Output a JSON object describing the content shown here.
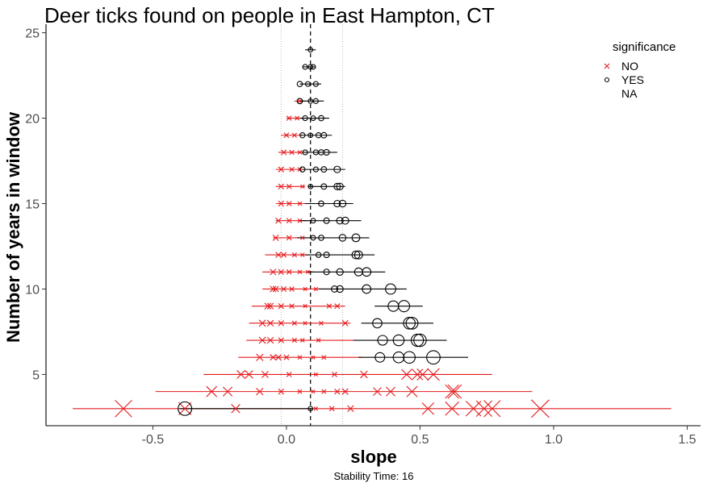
{
  "chart_data": {
    "type": "scatter",
    "title": "Deer ticks found on people in East Hampton, CT",
    "xlabel": "slope",
    "ylabel": "Number of years in window",
    "caption": "Stability Time: 16",
    "xlim": [
      -0.9,
      1.55
    ],
    "ylim": [
      2,
      25.5
    ],
    "x_ticks": [
      -0.5,
      0.0,
      0.5,
      1.0,
      1.5
    ],
    "x_tick_labels": [
      "-0.5",
      "0.0",
      "0.5",
      "1.0",
      "1.5"
    ],
    "y_ticks": [
      5,
      10,
      15,
      20,
      25
    ],
    "y_tick_labels": [
      "5",
      "10",
      "15",
      "20",
      "25"
    ],
    "grid": false,
    "reference_lines": {
      "dashed": 0.09,
      "dotted": [
        -0.02,
        0.21
      ]
    },
    "colors": {
      "NO": "#e41a1c",
      "YES": "#000000"
    },
    "legend": {
      "title": "significance",
      "position": "top-right",
      "entries": [
        {
          "label": "NO",
          "shape": "x",
          "color": "#e41a1c"
        },
        {
          "label": "YES",
          "shape": "circle",
          "color": "#000000"
        },
        {
          "label": "NA",
          "shape": "none",
          "color": "#000000"
        }
      ]
    },
    "rows": [
      {
        "y": 3,
        "no": {
          "range": [
            -0.8,
            1.44
          ],
          "points": [
            -0.61,
            -0.38,
            -0.19,
            0.11,
            0.17,
            0.24,
            0.53,
            0.62,
            0.7,
            0.74,
            0.77,
            0.95
          ]
        },
        "yes": {
          "range": [
            -0.4,
            0.1
          ],
          "points": [
            -0.38,
            0.09
          ]
        }
      },
      {
        "y": 4,
        "no": {
          "range": [
            -0.49,
            0.92
          ],
          "points": [
            -0.28,
            -0.22,
            -0.1,
            -0.02,
            0.05,
            0.1,
            0.14,
            0.19,
            0.22,
            0.34,
            0.39,
            0.47,
            0.62,
            0.63
          ]
        },
        "yes": null
      },
      {
        "y": 5,
        "no": {
          "range": [
            -0.31,
            0.77
          ],
          "points": [
            -0.17,
            -0.14,
            -0.08,
            0.01,
            0.11,
            0.18,
            0.29,
            0.45,
            0.49,
            0.51,
            0.55
          ]
        },
        "yes": null
      },
      {
        "y": 6,
        "no": {
          "range": [
            -0.18,
            0.28
          ],
          "points": [
            -0.1,
            -0.05,
            -0.03,
            0.0,
            0.05,
            0.1,
            0.14
          ]
        },
        "yes": {
          "range": [
            0.27,
            0.68
          ],
          "points": [
            0.35,
            0.42,
            0.46,
            0.55
          ]
        }
      },
      {
        "y": 7,
        "no": {
          "range": [
            -0.15,
            0.25
          ],
          "points": [
            -0.09,
            -0.06,
            -0.02,
            0.03,
            0.06,
            0.12
          ]
        },
        "yes": {
          "range": [
            0.25,
            0.6
          ],
          "points": [
            0.36,
            0.42,
            0.49,
            0.5
          ]
        }
      },
      {
        "y": 8,
        "no": {
          "range": [
            -0.14,
            0.24
          ],
          "points": [
            -0.09,
            -0.06,
            -0.02,
            0.03,
            0.07,
            0.13,
            0.22
          ]
        },
        "yes": {
          "range": [
            0.28,
            0.55
          ],
          "points": [
            0.34,
            0.46,
            0.47
          ]
        }
      },
      {
        "y": 9,
        "no": {
          "range": [
            -0.13,
            0.22
          ],
          "points": [
            -0.07,
            -0.06,
            -0.02,
            0.02,
            0.07,
            0.16,
            0.19
          ]
        },
        "yes": {
          "range": [
            0.33,
            0.51
          ],
          "points": [
            0.4,
            0.44
          ]
        }
      },
      {
        "y": 10,
        "no": {
          "range": [
            -0.09,
            0.16
          ],
          "points": [
            -0.05,
            -0.04,
            -0.01,
            0.02,
            0.07,
            0.11
          ]
        },
        "yes": {
          "range": [
            0.12,
            0.45
          ],
          "points": [
            0.18,
            0.2,
            0.3,
            0.39
          ]
        }
      },
      {
        "y": 11,
        "no": {
          "range": [
            -0.09,
            0.1
          ],
          "points": [
            -0.05,
            -0.02,
            0.01,
            0.05,
            0.08
          ]
        },
        "yes": {
          "range": [
            0.08,
            0.37
          ],
          "points": [
            0.15,
            0.2,
            0.27,
            0.3
          ]
        }
      },
      {
        "y": 12,
        "no": {
          "range": [
            -0.08,
            0.09
          ],
          "points": [
            -0.03,
            -0.01,
            0.03,
            0.06
          ]
        },
        "yes": {
          "range": [
            0.07,
            0.33
          ],
          "points": [
            0.12,
            0.15,
            0.26,
            0.27
          ]
        }
      },
      {
        "y": 13,
        "no": {
          "range": [
            -0.05,
            0.08
          ],
          "points": [
            -0.04,
            0.01,
            0.06
          ]
        },
        "yes": {
          "range": [
            0.04,
            0.31
          ],
          "points": [
            0.1,
            0.13,
            0.21,
            0.26
          ]
        }
      },
      {
        "y": 14,
        "no": {
          "range": [
            -0.04,
            0.08
          ],
          "points": [
            -0.03,
            0.01,
            0.05
          ]
        },
        "yes": {
          "range": [
            0.05,
            0.28
          ],
          "points": [
            0.1,
            0.15,
            0.2,
            0.22
          ]
        }
      },
      {
        "y": 15,
        "no": {
          "range": [
            -0.04,
            0.08
          ],
          "points": [
            -0.02,
            0.01,
            0.05
          ]
        },
        "yes": {
          "range": [
            0.07,
            0.25
          ],
          "points": [
            0.13,
            0.19,
            0.21
          ]
        }
      },
      {
        "y": 16,
        "no": {
          "range": [
            -0.04,
            0.07
          ],
          "points": [
            -0.02,
            0.01,
            0.06
          ]
        },
        "yes": {
          "range": [
            0.08,
            0.22
          ],
          "points": [
            0.09,
            0.14,
            0.19,
            0.2
          ]
        }
      },
      {
        "y": 17,
        "no": {
          "range": [
            -0.04,
            0.06
          ],
          "points": [
            -0.02,
            0.02,
            0.05
          ]
        },
        "yes": {
          "range": [
            0.06,
            0.22
          ],
          "points": [
            0.06,
            0.11,
            0.14,
            0.19
          ]
        }
      },
      {
        "y": 18,
        "no": {
          "range": [
            -0.03,
            0.07
          ],
          "points": [
            -0.01,
            0.02,
            0.05
          ]
        },
        "yes": {
          "range": [
            0.06,
            0.19
          ],
          "points": [
            0.07,
            0.11,
            0.13,
            0.15
          ]
        }
      },
      {
        "y": 19,
        "no": {
          "range": [
            -0.02,
            0.06
          ],
          "points": [
            0.0,
            0.03
          ]
        },
        "yes": {
          "range": [
            0.05,
            0.17
          ],
          "points": [
            0.06,
            0.09,
            0.12,
            0.14
          ]
        }
      },
      {
        "y": 20,
        "no": {
          "range": [
            0.0,
            0.07
          ],
          "points": [
            0.01,
            0.04
          ]
        },
        "yes": {
          "range": [
            0.05,
            0.16
          ],
          "points": [
            0.07,
            0.1,
            0.13
          ]
        }
      },
      {
        "y": 21,
        "no": {
          "range": [
            0.03,
            0.07
          ],
          "points": [
            0.05
          ]
        },
        "yes": {
          "range": [
            0.05,
            0.14
          ],
          "points": [
            0.05,
            0.09,
            0.11
          ]
        }
      },
      {
        "y": 22,
        "no": null,
        "yes": {
          "range": [
            0.05,
            0.13
          ],
          "points": [
            0.05,
            0.08,
            0.11
          ]
        }
      },
      {
        "y": 23,
        "no": null,
        "yes": {
          "range": [
            0.06,
            0.11
          ],
          "points": [
            0.07,
            0.09,
            0.1
          ]
        }
      },
      {
        "y": 24,
        "no": null,
        "yes": {
          "range": [
            0.07,
            0.11
          ],
          "points": [
            0.09
          ]
        }
      }
    ]
  }
}
